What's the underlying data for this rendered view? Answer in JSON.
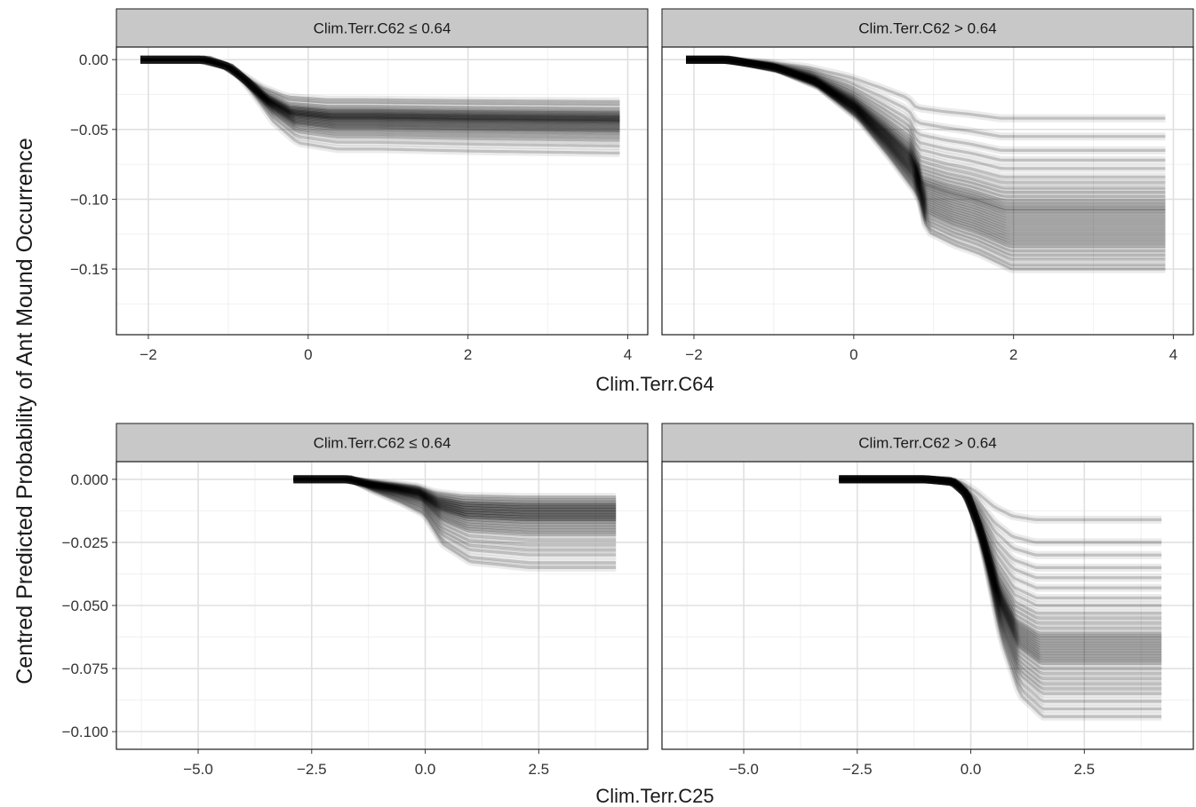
{
  "y_axis_label": "Centred Predicted Probability of Ant Mound Occurrence",
  "colors": {
    "strip_fill": "#c8c8c8",
    "panel_border": "#1a1a1a",
    "grid_major": "#e0e0e0",
    "grid_minor": "#f0f0f0",
    "curve": "#000000"
  },
  "chart_data": [
    {
      "type": "line",
      "plot_kind": "ICE (individual conditional expectation) curves",
      "xlabel": "Clim.Terr.C64",
      "ylabel": "Centred Predicted Probability of Ant Mound Occurrence",
      "xlim": [
        -2.4,
        4.25
      ],
      "ylim": [
        -0.197,
        0.009
      ],
      "x_ticks": [
        -2,
        0,
        2,
        4
      ],
      "x_tick_labels": [
        "−2",
        "0",
        "2",
        "4"
      ],
      "y_ticks": [
        0.0,
        -0.05,
        -0.1,
        -0.15
      ],
      "y_tick_labels": [
        "0.00",
        "−0.05",
        "−0.10",
        "−0.15"
      ],
      "grid": true,
      "facets": [
        {
          "strip": "Clim.Terr.C62 ≤ 0.64",
          "x_range": [
            -2.1,
            3.9
          ],
          "shape": [
            [
              -2.1,
              0
            ],
            [
              -1.3,
              0
            ],
            [
              -1.0,
              -0.005
            ],
            [
              -0.8,
              -0.014
            ],
            [
              -0.5,
              -0.03
            ],
            [
              -0.2,
              -0.04
            ],
            [
              0.3,
              -0.043
            ],
            [
              0.8,
              -0.043
            ],
            [
              2.0,
              -0.044
            ],
            [
              3.9,
              -0.045
            ]
          ],
          "final_values": [
            -0.03,
            -0.032,
            -0.035,
            -0.037,
            -0.038,
            -0.039,
            -0.04,
            -0.041,
            -0.041,
            -0.042,
            -0.043,
            -0.043,
            -0.044,
            -0.044,
            -0.045,
            -0.046,
            -0.047,
            -0.048,
            -0.049,
            -0.05,
            -0.051,
            -0.052,
            -0.054,
            -0.056,
            -0.058,
            -0.062,
            -0.067
          ]
        },
        {
          "strip": "Clim.Terr.C62 > 0.64",
          "x_range": [
            -2.1,
            3.9
          ],
          "shape": [
            [
              -2.1,
              0
            ],
            [
              -1.6,
              0
            ],
            [
              -1.0,
              -0.006
            ],
            [
              -0.5,
              -0.016
            ],
            [
              0.0,
              -0.035
            ],
            [
              0.4,
              -0.058
            ],
            [
              0.75,
              -0.08
            ],
            [
              0.85,
              -0.1
            ],
            [
              1.2,
              -0.108
            ],
            [
              1.5,
              -0.113
            ],
            [
              1.9,
              -0.122
            ],
            [
              3.9,
              -0.122
            ]
          ],
          "final_values": [
            -0.042,
            -0.055,
            -0.065,
            -0.072,
            -0.078,
            -0.084,
            -0.088,
            -0.092,
            -0.095,
            -0.098,
            -0.101,
            -0.103,
            -0.105,
            -0.107,
            -0.108,
            -0.11,
            -0.112,
            -0.114,
            -0.116,
            -0.118,
            -0.12,
            -0.122,
            -0.124,
            -0.126,
            -0.128,
            -0.13,
            -0.132,
            -0.134,
            -0.137,
            -0.14,
            -0.143,
            -0.147,
            -0.15
          ]
        }
      ]
    },
    {
      "type": "line",
      "plot_kind": "ICE (individual conditional expectation) curves",
      "xlabel": "Clim.Terr.C25",
      "ylabel": "Centred Predicted Probability of Ant Mound Occurrence",
      "xlim": [
        -6.8,
        4.9
      ],
      "ylim": [
        -0.107,
        0.007
      ],
      "x_ticks": [
        -5.0,
        -2.5,
        0.0,
        2.5
      ],
      "x_tick_labels": [
        "−5.0",
        "−2.5",
        "0.0",
        "2.5"
      ],
      "y_ticks": [
        0.0,
        -0.025,
        -0.05,
        -0.075,
        -0.1
      ],
      "y_tick_labels": [
        "0.000",
        "−0.025",
        "−0.050",
        "−0.075",
        "−0.100"
      ],
      "grid": true,
      "facets": [
        {
          "strip": "Clim.Terr.C62 ≤ 0.64",
          "x_range": [
            -2.9,
            4.2
          ],
          "shape": [
            [
              -2.9,
              0
            ],
            [
              -1.7,
              0
            ],
            [
              -1.2,
              -0.002
            ],
            [
              -0.6,
              -0.004
            ],
            [
              -0.1,
              -0.006
            ],
            [
              0.3,
              -0.011
            ],
            [
              0.9,
              -0.014
            ],
            [
              2.2,
              -0.015
            ],
            [
              4.2,
              -0.015
            ]
          ],
          "final_values": [
            -0.007,
            -0.008,
            -0.009,
            -0.01,
            -0.01,
            -0.011,
            -0.011,
            -0.012,
            -0.012,
            -0.013,
            -0.013,
            -0.014,
            -0.014,
            -0.015,
            -0.015,
            -0.016,
            -0.016,
            -0.017,
            -0.018,
            -0.019,
            -0.02,
            -0.021,
            -0.022,
            -0.024,
            -0.026,
            -0.028,
            -0.03,
            -0.033,
            -0.035
          ]
        },
        {
          "strip": "Clim.Terr.C62 > 0.64",
          "x_range": [
            -2.9,
            4.2
          ],
          "shape": [
            [
              -2.9,
              0
            ],
            [
              -1.6,
              0
            ],
            [
              -1.0,
              0.0
            ],
            [
              -0.4,
              -0.001
            ],
            [
              -0.1,
              -0.006
            ],
            [
              0.2,
              -0.02
            ],
            [
              0.6,
              -0.045
            ],
            [
              1.0,
              -0.06
            ],
            [
              1.5,
              -0.066
            ],
            [
              4.2,
              -0.066
            ]
          ],
          "final_values": [
            -0.016,
            -0.025,
            -0.03,
            -0.035,
            -0.039,
            -0.043,
            -0.047,
            -0.05,
            -0.053,
            -0.055,
            -0.057,
            -0.059,
            -0.061,
            -0.062,
            -0.063,
            -0.064,
            -0.065,
            -0.066,
            -0.067,
            -0.068,
            -0.069,
            -0.07,
            -0.071,
            -0.072,
            -0.073,
            -0.075,
            -0.077,
            -0.079,
            -0.081,
            -0.083,
            -0.085,
            -0.088,
            -0.091,
            -0.094
          ]
        }
      ]
    }
  ]
}
